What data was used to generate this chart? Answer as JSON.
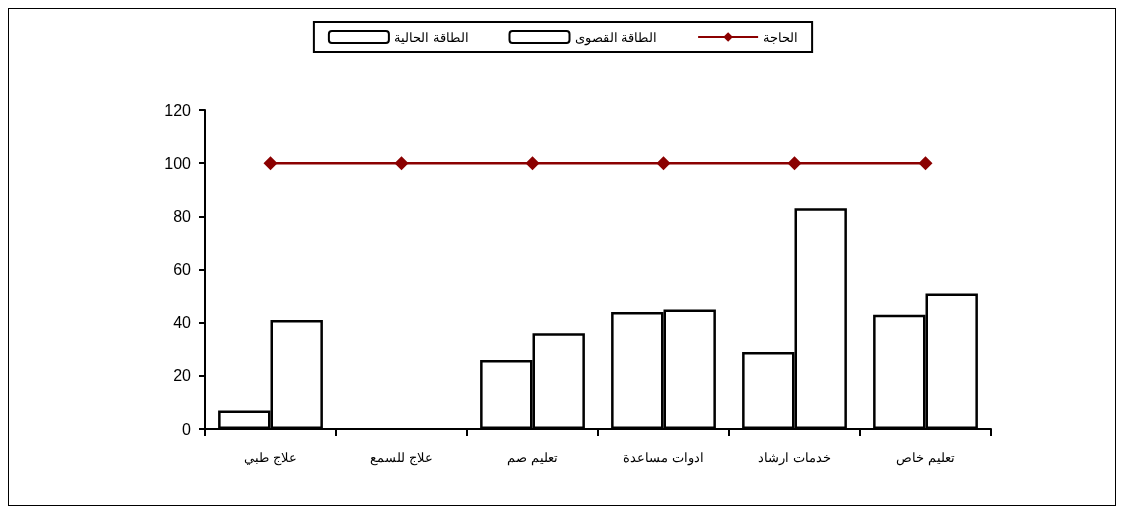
{
  "chart_data": {
    "type": "bar",
    "categories": [
      "علاج طبي",
      "علاج للسمع",
      "تعليم صم",
      "ادوات مساعدة",
      "خدمات ارشاد",
      "تعليم خاص"
    ],
    "series": [
      {
        "name": "الطاقة الحالية",
        "color": "#ffffff",
        "values": [
          7,
          null,
          26,
          44,
          29,
          43
        ]
      },
      {
        "name": "الطاقة القصوى",
        "color": "#ffffff",
        "values": [
          41,
          null,
          36,
          45,
          83,
          51
        ]
      },
      {
        "name": "الحاجة",
        "type": "line",
        "color": "#8b0000",
        "marker": "diamond",
        "line_style": "solid",
        "values": [
          100,
          100,
          100,
          100,
          100,
          100
        ]
      }
    ],
    "ylim": [
      0,
      120
    ],
    "yticks": [
      0,
      20,
      40,
      60,
      80,
      100,
      120
    ],
    "grid": false,
    "legend": "top"
  }
}
